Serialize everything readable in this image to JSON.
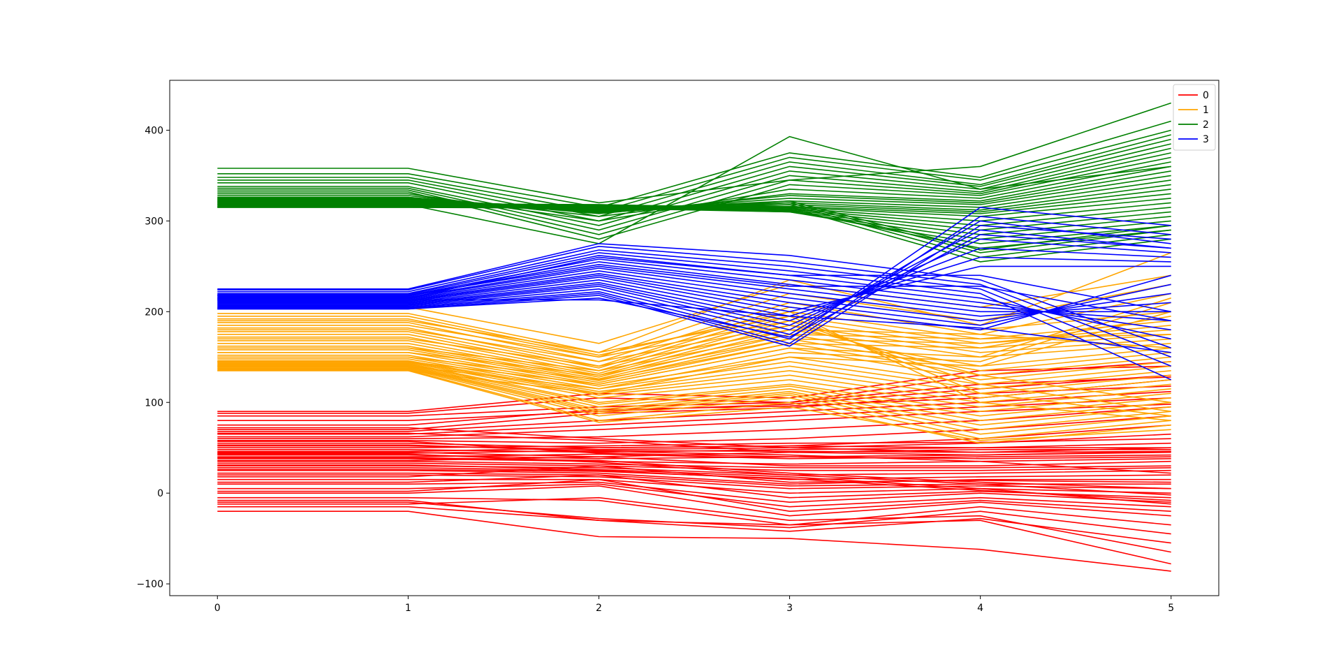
{
  "chart_data": {
    "type": "line",
    "title": "",
    "xlabel": "",
    "ylabel": "",
    "x": [
      0,
      1,
      2,
      3,
      4,
      5
    ],
    "xlim": [
      -0.25,
      5.25
    ],
    "ylim": [
      -113,
      455
    ],
    "x_ticks": [
      0,
      1,
      2,
      3,
      4,
      5
    ],
    "y_ticks": [
      -100,
      0,
      100,
      200,
      300,
      400
    ],
    "grid": false,
    "legend": {
      "position": "top-right",
      "entries": [
        "0",
        "1",
        "2",
        "3"
      ]
    },
    "series": [
      {
        "name": "0",
        "color": "#ff0000",
        "lines": [
          [
            90,
            90,
            110,
            105,
            135,
            140
          ],
          [
            85,
            85,
            95,
            100,
            120,
            128
          ],
          [
            80,
            80,
            90,
            98,
            115,
            130
          ],
          [
            75,
            75,
            92,
            96,
            105,
            125
          ],
          [
            70,
            70,
            88,
            94,
            110,
            118
          ],
          [
            68,
            68,
            80,
            90,
            100,
            112
          ],
          [
            65,
            65,
            75,
            85,
            95,
            105
          ],
          [
            62,
            62,
            70,
            80,
            90,
            98
          ],
          [
            60,
            60,
            62,
            70,
            80,
            95
          ],
          [
            58,
            58,
            55,
            60,
            70,
            85
          ],
          [
            55,
            55,
            50,
            52,
            60,
            75
          ],
          [
            52,
            52,
            48,
            50,
            55,
            65
          ],
          [
            50,
            50,
            52,
            55,
            56,
            60
          ],
          [
            48,
            48,
            45,
            48,
            50,
            55
          ],
          [
            46,
            46,
            50,
            52,
            50,
            50
          ],
          [
            45,
            45,
            40,
            45,
            48,
            48
          ],
          [
            44,
            44,
            47,
            46,
            45,
            46
          ],
          [
            42,
            42,
            38,
            40,
            42,
            45
          ],
          [
            40,
            40,
            43,
            38,
            40,
            42
          ],
          [
            38,
            38,
            35,
            32,
            35,
            38
          ],
          [
            36,
            36,
            40,
            30,
            30,
            35
          ],
          [
            35,
            35,
            32,
            28,
            28,
            30
          ],
          [
            33,
            33,
            30,
            25,
            25,
            28
          ],
          [
            30,
            30,
            28,
            20,
            22,
            25
          ],
          [
            28,
            28,
            25,
            15,
            18,
            20
          ],
          [
            25,
            25,
            22,
            10,
            15,
            15
          ],
          [
            22,
            22,
            20,
            8,
            10,
            10
          ],
          [
            20,
            20,
            18,
            5,
            8,
            5
          ],
          [
            15,
            15,
            15,
            0,
            5,
            0
          ],
          [
            12,
            12,
            20,
            -5,
            2,
            -5
          ],
          [
            10,
            10,
            12,
            -10,
            0,
            -10
          ],
          [
            5,
            5,
            10,
            -15,
            -5,
            -15
          ],
          [
            2,
            2,
            15,
            -20,
            -8,
            -20
          ],
          [
            0,
            0,
            8,
            -25,
            -10,
            -25
          ],
          [
            -5,
            -5,
            -8,
            -35,
            -15,
            -35
          ],
          [
            -10,
            -10,
            -28,
            -38,
            -20,
            -45
          ],
          [
            -15,
            -15,
            -30,
            -42,
            -28,
            -55
          ],
          [
            -20,
            -20,
            -48,
            -50,
            -62,
            -86
          ],
          [
            -12,
            -12,
            -5,
            -30,
            -25,
            -65
          ],
          [
            -8,
            -8,
            -30,
            -35,
            -30,
            -78
          ],
          [
            88,
            88,
            105,
            100,
            130,
            145
          ],
          [
            72,
            72,
            60,
            50,
            45,
            50
          ],
          [
            66,
            66,
            58,
            45,
            42,
            46
          ],
          [
            57,
            57,
            44,
            40,
            38,
            40
          ],
          [
            53,
            53,
            46,
            42,
            35,
            22
          ],
          [
            43,
            43,
            34,
            20,
            10,
            -2
          ],
          [
            39,
            39,
            36,
            22,
            12,
            5
          ],
          [
            31,
            31,
            26,
            18,
            5,
            -12
          ],
          [
            26,
            26,
            24,
            16,
            3,
            -8
          ],
          [
            18,
            18,
            30,
            12,
            14,
            12
          ]
        ]
      },
      {
        "name": "1",
        "color": "#ffa500",
        "lines": [
          [
            205,
            205,
            165,
            230,
            205,
            240
          ],
          [
            198,
            198,
            155,
            235,
            185,
            265
          ],
          [
            192,
            192,
            150,
            220,
            190,
            230
          ],
          [
            188,
            188,
            145,
            210,
            175,
            220
          ],
          [
            182,
            182,
            140,
            205,
            180,
            200
          ],
          [
            178,
            178,
            138,
            200,
            170,
            190
          ],
          [
            175,
            175,
            135,
            195,
            165,
            180
          ],
          [
            172,
            172,
            132,
            190,
            160,
            175
          ],
          [
            168,
            168,
            130,
            185,
            155,
            170
          ],
          [
            165,
            165,
            128,
            180,
            150,
            165
          ],
          [
            162,
            162,
            126,
            175,
            140,
            160
          ],
          [
            160,
            160,
            124,
            170,
            135,
            155
          ],
          [
            158,
            158,
            122,
            165,
            130,
            150
          ],
          [
            155,
            155,
            120,
            160,
            125,
            145
          ],
          [
            152,
            152,
            118,
            150,
            120,
            140
          ],
          [
            150,
            150,
            115,
            145,
            115,
            135
          ],
          [
            148,
            148,
            112,
            140,
            110,
            130
          ],
          [
            146,
            146,
            110,
            135,
            105,
            125
          ],
          [
            145,
            145,
            108,
            130,
            100,
            120
          ],
          [
            144,
            144,
            105,
            125,
            95,
            115
          ],
          [
            143,
            143,
            100,
            120,
            90,
            110
          ],
          [
            142,
            142,
            98,
            118,
            85,
            105
          ],
          [
            141,
            141,
            95,
            115,
            80,
            100
          ],
          [
            140,
            140,
            92,
            112,
            75,
            95
          ],
          [
            139,
            139,
            90,
            110,
            70,
            90
          ],
          [
            138,
            138,
            88,
            108,
            65,
            85
          ],
          [
            137,
            137,
            85,
            105,
            60,
            80
          ],
          [
            136,
            136,
            80,
            100,
            55,
            75
          ],
          [
            135,
            135,
            78,
            95,
            58,
            70
          ],
          [
            135,
            135,
            110,
            150,
            140,
            200
          ],
          [
            140,
            140,
            115,
            155,
            145,
            210
          ],
          [
            145,
            145,
            120,
            160,
            150,
            215
          ],
          [
            150,
            150,
            125,
            165,
            160,
            195
          ],
          [
            155,
            155,
            130,
            170,
            165,
            185
          ],
          [
            160,
            160,
            135,
            175,
            170,
            175
          ],
          [
            170,
            170,
            140,
            180,
            175,
            160
          ],
          [
            180,
            180,
            145,
            185,
            130,
            100
          ],
          [
            185,
            185,
            150,
            190,
            120,
            90
          ],
          [
            190,
            190,
            155,
            195,
            110,
            85
          ],
          [
            195,
            195,
            152,
            200,
            100,
            80
          ]
        ]
      },
      {
        "name": "2",
        "color": "#008000",
        "lines": [
          [
            358,
            358,
            320,
            345,
            360,
            430
          ],
          [
            352,
            352,
            315,
            375,
            348,
            410
          ],
          [
            348,
            348,
            310,
            370,
            345,
            400
          ],
          [
            345,
            345,
            305,
            365,
            340,
            395
          ],
          [
            342,
            342,
            300,
            360,
            338,
            390
          ],
          [
            338,
            338,
            295,
            355,
            335,
            385
          ],
          [
            336,
            336,
            290,
            350,
            332,
            380
          ],
          [
            334,
            334,
            285,
            345,
            330,
            375
          ],
          [
            332,
            332,
            280,
            340,
            328,
            370
          ],
          [
            330,
            330,
            300,
            335,
            325,
            365
          ],
          [
            328,
            328,
            305,
            330,
            322,
            360
          ],
          [
            326,
            326,
            308,
            328,
            320,
            355
          ],
          [
            325,
            325,
            310,
            325,
            318,
            350
          ],
          [
            324,
            324,
            312,
            322,
            315,
            345
          ],
          [
            323,
            323,
            314,
            320,
            312,
            340
          ],
          [
            322,
            322,
            315,
            318,
            310,
            335
          ],
          [
            321,
            321,
            316,
            316,
            308,
            330
          ],
          [
            320,
            320,
            317,
            315,
            305,
            325
          ],
          [
            319,
            319,
            318,
            314,
            300,
            320
          ],
          [
            318,
            318,
            318,
            313,
            295,
            315
          ],
          [
            317,
            317,
            317,
            312,
            290,
            310
          ],
          [
            316,
            316,
            316,
            311,
            285,
            305
          ],
          [
            315,
            315,
            315,
            310,
            280,
            300
          ],
          [
            315,
            315,
            314,
            310,
            275,
            295
          ],
          [
            316,
            316,
            313,
            312,
            270,
            290
          ],
          [
            318,
            318,
            275,
            393,
            335,
            360
          ],
          [
            320,
            320,
            312,
            315,
            255,
            280
          ],
          [
            322,
            322,
            311,
            318,
            260,
            285
          ],
          [
            324,
            324,
            310,
            320,
            265,
            290
          ],
          [
            326,
            326,
            309,
            322,
            268,
            295
          ]
        ]
      },
      {
        "name": "3",
        "color": "#0000ff",
        "lines": [
          [
            225,
            225,
            275,
            262,
            235,
            160
          ],
          [
            224,
            224,
            272,
            255,
            230,
            150
          ],
          [
            222,
            222,
            268,
            250,
            225,
            140
          ],
          [
            220,
            220,
            265,
            245,
            220,
            125
          ],
          [
            219,
            219,
            262,
            240,
            215,
            170
          ],
          [
            218,
            218,
            258,
            235,
            210,
            180
          ],
          [
            217,
            217,
            255,
            230,
            205,
            190
          ],
          [
            216,
            216,
            250,
            225,
            200,
            200
          ],
          [
            215,
            215,
            248,
            220,
            195,
            210
          ],
          [
            214,
            214,
            245,
            215,
            190,
            220
          ],
          [
            213,
            213,
            242,
            210,
            185,
            230
          ],
          [
            212,
            212,
            240,
            205,
            180,
            240
          ],
          [
            211,
            211,
            238,
            200,
            250,
            250
          ],
          [
            210,
            210,
            235,
            195,
            260,
            255
          ],
          [
            209,
            209,
            232,
            190,
            270,
            260
          ],
          [
            208,
            208,
            230,
            185,
            280,
            265
          ],
          [
            207,
            207,
            228,
            180,
            290,
            270
          ],
          [
            206,
            206,
            225,
            175,
            300,
            275
          ],
          [
            205,
            205,
            222,
            170,
            315,
            295
          ],
          [
            204,
            204,
            220,
            165,
            305,
            285
          ],
          [
            203,
            203,
            218,
            162,
            295,
            280
          ],
          [
            203,
            203,
            215,
            172,
            285,
            270
          ],
          [
            213,
            213,
            213,
            195,
            182,
            155
          ],
          [
            215,
            215,
            260,
            240,
            240,
            200
          ],
          [
            218,
            218,
            252,
            228,
            228,
            190
          ]
        ]
      }
    ]
  }
}
